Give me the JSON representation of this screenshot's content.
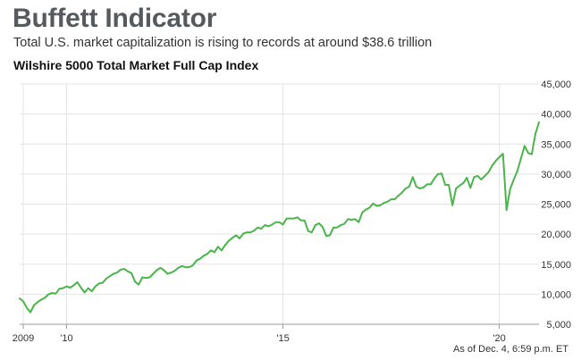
{
  "header": {
    "title": "Buffett Indicator",
    "subtitle": "Total U.S. market capitalization is rising to records at around $38.6 trillion"
  },
  "footnote": "As of Dec. 4, 6:59 p.m. ET",
  "colors": {
    "line": "#4ab54a",
    "grid": "#e3e3e3",
    "axis": "#999999",
    "title": "#555a5f"
  },
  "chart_data": {
    "type": "line",
    "title": "Wilshire 5000 Total Market Full Cap Index",
    "xlabel": "",
    "ylabel": "",
    "grid": "horizontal and vertical",
    "legend": "none",
    "ylim": [
      5000,
      45000
    ],
    "xlim": [
      "2008-12",
      "2020-12"
    ],
    "y_ticks": [
      5000,
      10000,
      15000,
      20000,
      25000,
      30000,
      35000,
      40000,
      45000
    ],
    "y_tick_labels": [
      "5,000",
      "10,000",
      "15,000",
      "20,000",
      "25,000",
      "30,000",
      "35,000",
      "40,000",
      "45,000"
    ],
    "x_ticks": [
      {
        "x": "2009-01",
        "label": "2009"
      },
      {
        "x": "2010-01",
        "label": "'10"
      },
      {
        "x": "2015-01",
        "label": "'15"
      },
      {
        "x": "2020-01",
        "label": "'20"
      }
    ],
    "series": [
      {
        "x": [
          "2008-12",
          "2009-01",
          "2009-02",
          "2009-03",
          "2009-04",
          "2009-05",
          "2009-06",
          "2009-07",
          "2009-08",
          "2009-09",
          "2009-10",
          "2009-11",
          "2009-12",
          "2010-01",
          "2010-02",
          "2010-03",
          "2010-04",
          "2010-05",
          "2010-06",
          "2010-07",
          "2010-08",
          "2010-09",
          "2010-10",
          "2010-11",
          "2010-12",
          "2011-01",
          "2011-02",
          "2011-03",
          "2011-04",
          "2011-05",
          "2011-06",
          "2011-07",
          "2011-08",
          "2011-09",
          "2011-10",
          "2011-11",
          "2011-12",
          "2012-01",
          "2012-02",
          "2012-03",
          "2012-04",
          "2012-05",
          "2012-06",
          "2012-07",
          "2012-08",
          "2012-09",
          "2012-10",
          "2012-11",
          "2012-12",
          "2013-01",
          "2013-02",
          "2013-03",
          "2013-04",
          "2013-05",
          "2013-06",
          "2013-07",
          "2013-08",
          "2013-09",
          "2013-10",
          "2013-11",
          "2013-12",
          "2014-01",
          "2014-02",
          "2014-03",
          "2014-04",
          "2014-05",
          "2014-06",
          "2014-07",
          "2014-08",
          "2014-09",
          "2014-10",
          "2014-11",
          "2014-12",
          "2015-01",
          "2015-02",
          "2015-03",
          "2015-04",
          "2015-05",
          "2015-06",
          "2015-07",
          "2015-08",
          "2015-09",
          "2015-10",
          "2015-11",
          "2015-12",
          "2016-01",
          "2016-02",
          "2016-03",
          "2016-04",
          "2016-05",
          "2016-06",
          "2016-07",
          "2016-08",
          "2016-09",
          "2016-10",
          "2016-11",
          "2016-12",
          "2017-01",
          "2017-02",
          "2017-03",
          "2017-04",
          "2017-05",
          "2017-06",
          "2017-07",
          "2017-08",
          "2017-09",
          "2017-10",
          "2017-11",
          "2017-12",
          "2018-01",
          "2018-02",
          "2018-03",
          "2018-04",
          "2018-05",
          "2018-06",
          "2018-07",
          "2018-08",
          "2018-09",
          "2018-10",
          "2018-11",
          "2018-12",
          "2019-01",
          "2019-02",
          "2019-03",
          "2019-04",
          "2019-05",
          "2019-06",
          "2019-07",
          "2019-08",
          "2019-09",
          "2019-10",
          "2019-11",
          "2019-12",
          "2020-01",
          "2020-02",
          "2020-03",
          "2020-04",
          "2020-05",
          "2020-06",
          "2020-07",
          "2020-08",
          "2020-09",
          "2020-10",
          "2020-11",
          "2020-12"
        ],
        "values": [
          9300,
          8800,
          7700,
          7000,
          8200,
          8700,
          9100,
          9400,
          10000,
          10200,
          10100,
          10900,
          11000,
          11300,
          11100,
          11500,
          12000,
          11100,
          10300,
          11000,
          10500,
          11300,
          11800,
          11900,
          12600,
          13000,
          13400,
          13600,
          14100,
          14200,
          13800,
          13500,
          12100,
          11600,
          12800,
          12700,
          12800,
          13400,
          14000,
          14400,
          14000,
          13400,
          13600,
          13900,
          14400,
          14700,
          14500,
          14500,
          14800,
          15600,
          15900,
          16400,
          16700,
          17300,
          17000,
          17900,
          17300,
          18200,
          18900,
          19400,
          19800,
          19300,
          20100,
          20300,
          20300,
          20600,
          21100,
          20900,
          21500,
          21300,
          21600,
          22000,
          22000,
          21600,
          22600,
          22600,
          22600,
          22800,
          22300,
          22300,
          20500,
          20300,
          21500,
          21800,
          21200,
          19700,
          19800,
          21100,
          21100,
          21500,
          21700,
          22500,
          22400,
          22500,
          22000,
          23600,
          24100,
          24400,
          25100,
          24700,
          24800,
          25200,
          25400,
          25800,
          25800,
          26400,
          26900,
          27600,
          27900,
          29500,
          27900,
          27600,
          27800,
          28300,
          28300,
          29300,
          30000,
          30100,
          28200,
          28200,
          24800,
          27600,
          28100,
          28500,
          29400,
          27700,
          29500,
          29700,
          29100,
          29700,
          30300,
          31400,
          32200,
          32800,
          33400,
          24000,
          27500,
          29100,
          30500,
          32600,
          34700,
          33500,
          33300,
          36700,
          38600
        ]
      }
    ]
  }
}
